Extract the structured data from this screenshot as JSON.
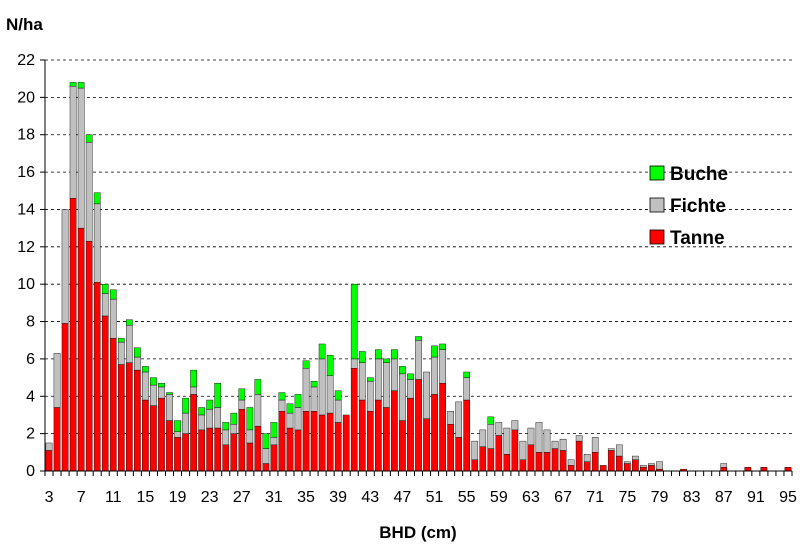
{
  "chart_data": {
    "type": "bar",
    "stacked": true,
    "ylabel": "N/ha",
    "xlabel": "BHD (cm)",
    "ylim": [
      0,
      22
    ],
    "y_ticks": [
      "0",
      "2",
      "4",
      "6",
      "8",
      "10",
      "12",
      "14",
      "16",
      "18",
      "20",
      "22"
    ],
    "grid": "horizontal dashed",
    "legend_position": "right",
    "colors": {
      "Tanne": "#ff0000",
      "Fichte": "#c0c0c0",
      "Buche": "#00ff00"
    },
    "legend_order": [
      "Buche",
      "Fichte",
      "Tanne"
    ],
    "categories": [
      "3",
      "4",
      "5",
      "6",
      "7",
      "8",
      "9",
      "10",
      "11",
      "12",
      "13",
      "14",
      "15",
      "16",
      "17",
      "18",
      "19",
      "20",
      "21",
      "22",
      "23",
      "24",
      "25",
      "26",
      "27",
      "28",
      "29",
      "30",
      "31",
      "32",
      "33",
      "34",
      "35",
      "36",
      "37",
      "38",
      "39",
      "40",
      "41",
      "42",
      "43",
      "44",
      "45",
      "46",
      "47",
      "48",
      "49",
      "50",
      "51",
      "52",
      "53",
      "54",
      "55",
      "56",
      "57",
      "58",
      "59",
      "60",
      "61",
      "62",
      "63",
      "64",
      "65",
      "66",
      "67",
      "68",
      "69",
      "70",
      "71",
      "72",
      "73",
      "74",
      "75",
      "76",
      "77",
      "78",
      "79",
      "80",
      "81",
      "82",
      "83",
      "84",
      "85",
      "86",
      "87",
      "88",
      "89",
      "90",
      "91",
      "92",
      "93",
      "94",
      "95"
    ],
    "x_tick_labels": [
      "3",
      "7",
      "11",
      "15",
      "19",
      "23",
      "27",
      "31",
      "35",
      "39",
      "43",
      "47",
      "51",
      "55",
      "59",
      "63",
      "67",
      "71",
      "75",
      "79",
      "83",
      "87",
      "91",
      "95"
    ],
    "series": [
      {
        "name": "Tanne",
        "values": [
          1.1,
          3.4,
          7.9,
          14.6,
          13.0,
          12.3,
          10.1,
          8.3,
          7.1,
          5.7,
          5.8,
          5.4,
          3.8,
          3.5,
          3.9,
          2.7,
          1.8,
          2.0,
          4.1,
          2.2,
          2.3,
          2.3,
          1.4,
          2.0,
          3.3,
          1.5,
          2.4,
          0.4,
          1.4,
          3.2,
          2.3,
          2.2,
          3.2,
          3.2,
          3.0,
          3.1,
          2.6,
          3.0,
          5.5,
          3.8,
          3.2,
          3.8,
          3.4,
          4.3,
          2.7,
          3.9,
          4.9,
          2.8,
          4.1,
          4.7,
          2.5,
          1.8,
          3.8,
          0.6,
          1.3,
          1.2,
          1.9,
          0.9,
          2.2,
          0.6,
          1.4,
          1.0,
          1.0,
          1.2,
          1.1,
          0.3,
          1.6,
          0.5,
          1.0,
          0.3,
          1.1,
          0.8,
          0.4,
          0.6,
          0.2,
          0.3,
          0.1,
          0,
          0,
          0.1,
          0,
          0,
          0,
          0,
          0.2,
          0,
          0,
          0.2,
          0,
          0.2,
          0,
          0,
          0.2
        ]
      },
      {
        "name": "Fichte",
        "values": [
          0.4,
          2.9,
          6.1,
          6.0,
          7.5,
          5.3,
          4.2,
          1.2,
          2.1,
          1.2,
          2.0,
          0.7,
          1.5,
          1.1,
          0.6,
          1.4,
          0.3,
          1.1,
          0.4,
          0.8,
          1.0,
          1.1,
          0.8,
          0.5,
          0.5,
          0.7,
          1.7,
          0.8,
          0.4,
          0.6,
          0.8,
          1.2,
          2.3,
          1.3,
          3.0,
          2.0,
          1.2,
          0,
          0.5,
          2.0,
          1.6,
          2.2,
          2.4,
          1.7,
          2.5,
          1.0,
          2.1,
          2.5,
          2.0,
          1.8,
          0.7,
          1.9,
          1.2,
          1.0,
          0.9,
          1.3,
          0.7,
          1.4,
          0.5,
          1.0,
          0.9,
          1.6,
          1.2,
          0.4,
          0.6,
          0.3,
          0.3,
          0.4,
          0.8,
          0,
          0.1,
          0.6,
          0.1,
          0.2,
          0.1,
          0.1,
          0.4,
          0,
          0,
          0,
          0,
          0,
          0,
          0,
          0.2,
          0,
          0,
          0,
          0,
          0,
          0,
          0,
          0
        ]
      },
      {
        "name": "Buche",
        "values": [
          0,
          0,
          0,
          0.2,
          0.3,
          0.4,
          0.6,
          0.5,
          0.5,
          0.2,
          0.3,
          0.5,
          0.3,
          0.4,
          0.2,
          0.1,
          0.6,
          0.8,
          0.9,
          0.4,
          0.5,
          1.3,
          0.4,
          0.6,
          0.6,
          1.2,
          0.8,
          0.8,
          0.8,
          0.4,
          0.5,
          0.7,
          0.4,
          0.3,
          0.8,
          1.1,
          0.5,
          0,
          4.0,
          0.6,
          0.2,
          0.5,
          0.2,
          0.5,
          0.4,
          0.3,
          0.2,
          0,
          0.6,
          0.3,
          0,
          0,
          0.3,
          0,
          0,
          0.4,
          0,
          0,
          0,
          0,
          0,
          0,
          0,
          0,
          0,
          0,
          0,
          0,
          0,
          0,
          0,
          0,
          0,
          0,
          0,
          0,
          0,
          0,
          0,
          0,
          0,
          0,
          0,
          0,
          0,
          0,
          0,
          0,
          0,
          0,
          0,
          0,
          0
        ]
      }
    ]
  }
}
